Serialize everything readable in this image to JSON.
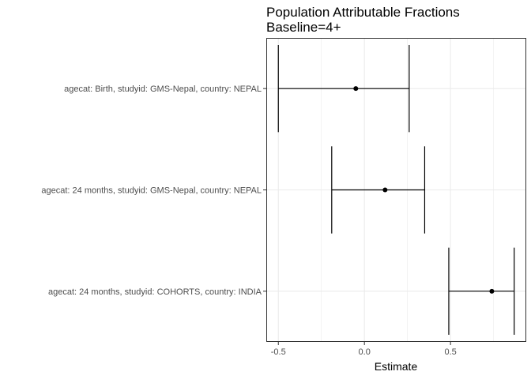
{
  "chart_data": {
    "type": "errorbar",
    "title": "Population Attributable Fractions",
    "subtitle": "Baseline=4+",
    "xlabel": "Estimate",
    "ylabel": "",
    "xlim": [
      -0.57,
      0.94
    ],
    "xticks": [
      -0.5,
      0.0,
      0.5
    ],
    "xtick_labels": [
      "-0.5",
      "0.0",
      "0.5"
    ],
    "grid": true,
    "categories": [
      "agecat: Birth, studyid: GMS-Nepal, country: NEPAL",
      "agecat: 24 months, studyid: GMS-Nepal, country: NEPAL",
      "agecat: 24 months, studyid: COHORTS, country: INDIA"
    ],
    "estimates": [
      -0.05,
      0.12,
      0.74
    ],
    "lower": [
      -0.5,
      -0.19,
      0.49
    ],
    "upper": [
      0.26,
      0.35,
      0.87
    ],
    "colors": {
      "point": "#000000",
      "errorbar": "#000000",
      "grid": "#ebebeb",
      "panel_border": "#333333"
    }
  }
}
